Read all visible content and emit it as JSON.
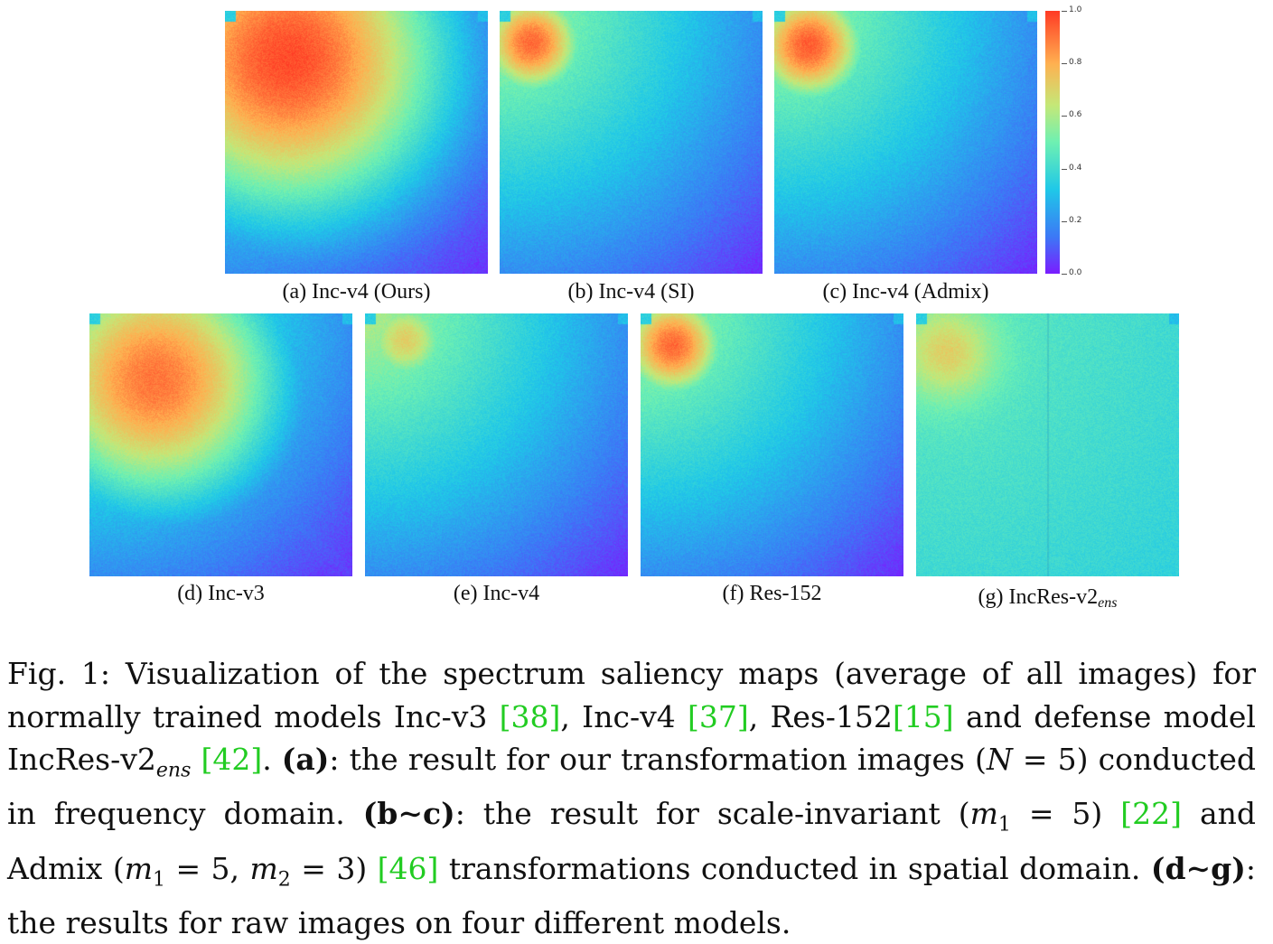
{
  "figure": {
    "panels": [
      {
        "id": "a",
        "label": "(a) Inc-v4 (Ours)",
        "hot_center": [
          0.24,
          0.18
        ],
        "hot_radius": 0.62,
        "hot_strength": 0.95,
        "falloff_to": "bottom-right"
      },
      {
        "id": "b",
        "label": "(b) Inc-v4 (SI)",
        "hot_center": [
          0.12,
          0.12
        ],
        "hot_radius": 0.22,
        "hot_strength": 0.9
      },
      {
        "id": "c",
        "label": "(c) Inc-v4 (Admix)",
        "hot_center": [
          0.13,
          0.13
        ],
        "hot_radius": 0.24,
        "hot_strength": 0.92
      },
      {
        "id": "d",
        "label": "(d) Inc-v3",
        "hot_center": [
          0.25,
          0.25
        ],
        "hot_radius": 0.5,
        "hot_strength": 0.88
      },
      {
        "id": "e",
        "label": "(e) Inc-v4",
        "hot_center": [
          0.15,
          0.1
        ],
        "hot_radius": 0.2,
        "hot_strength": 0.7
      },
      {
        "id": "f",
        "label": "(f) Res-152",
        "hot_center": [
          0.12,
          0.12
        ],
        "hot_radius": 0.22,
        "hot_strength": 0.9
      },
      {
        "id": "g",
        "label_main": "(g) IncRes-v2",
        "label_sub": "ens",
        "hot_center": [
          0.12,
          0.15
        ],
        "hot_radius": 0.25,
        "hot_strength": 0.6
      }
    ],
    "colorbar": {
      "ticks": [
        "1.0",
        "0.8",
        "0.6",
        "0.4",
        "0.2",
        "0.0"
      ],
      "colors": [
        "#7a1cff",
        "#3c78f6",
        "#1fc8e8",
        "#6ef0b2",
        "#c4e878",
        "#ffb050",
        "#ff3a24"
      ]
    }
  },
  "caption": {
    "fig_label": "Fig. 1:",
    "t1": " Visualization of the spectrum saliency maps (average of all images) for normally trained models Inc-v3 ",
    "r1": "[38]",
    "t2": ", Inc-v4 ",
    "r2": "[37]",
    "t3": ", Res-152",
    "r3": "[15]",
    "t4": " and defense model IncRes-v2",
    "sub_ens": "ens",
    "t5": " ",
    "r4": "[42]",
    "t6": ". ",
    "b1": "(a)",
    "t7": ": the result for our transformation images (",
    "m1": "N",
    "t8": " = 5) conducted in frequency domain. ",
    "b2": "(b∼c)",
    "t9": ": the result for scale-invariant (",
    "m2": "m",
    "s2": "1",
    "t10": " = 5) ",
    "r5": "[22]",
    "t11": " and Admix (",
    "m3": "m",
    "s3": "1",
    "t12": " = 5, ",
    "m4": "m",
    "s4": "2",
    "t13": " = 3) ",
    "r6": "[46]",
    "t14": " transformations conducted in spatial domain. ",
    "b3": "(d∼g)",
    "t15": ": the results for raw images on four different models."
  }
}
